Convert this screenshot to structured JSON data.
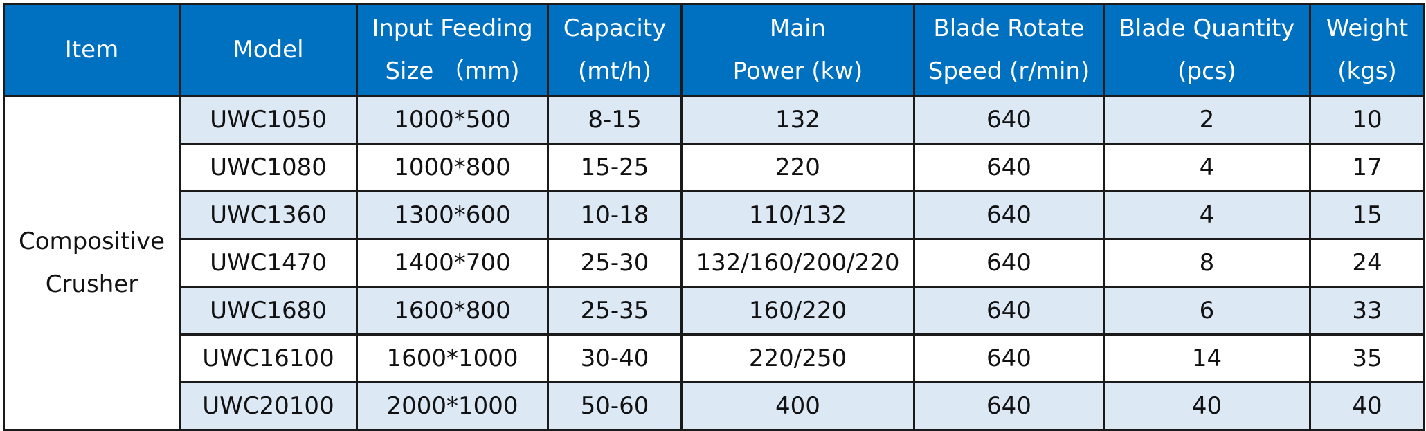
{
  "headers": {
    "item": "Item",
    "model": "Model",
    "input_line1": "Input Feeding",
    "input_line2": "Size （mm)",
    "capacity_line1": "Capacity",
    "capacity_line2": "(mt/h)",
    "power_line1": "Main",
    "power_line2": "Power (kw)",
    "speed_line1": "Blade Rotate",
    "speed_line2": "Speed (r/min)",
    "quantity_line1": "Blade Quantity",
    "quantity_line2": "(pcs)",
    "weight_line1": "Weight",
    "weight_line2": "(kgs)"
  },
  "item": {
    "line1": "Compositive",
    "line2": "Crusher"
  },
  "rows": [
    {
      "model": "UWC1050",
      "input": "1000*500",
      "capacity": "8-15",
      "power": "132",
      "speed": "640",
      "quantity": "2",
      "weight": "10"
    },
    {
      "model": "UWC1080",
      "input": "1000*800",
      "capacity": "15-25",
      "power": "220",
      "speed": "640",
      "quantity": "4",
      "weight": "17"
    },
    {
      "model": "UWC1360",
      "input": "1300*600",
      "capacity": "10-18",
      "power": "110/132",
      "speed": "640",
      "quantity": "4",
      "weight": "15"
    },
    {
      "model": "UWC1470",
      "input": "1400*700",
      "capacity": "25-30",
      "power": "132/160/200/220",
      "speed": "640",
      "quantity": "8",
      "weight": "24"
    },
    {
      "model": "UWC1680",
      "input": "1600*800",
      "capacity": "25-35",
      "power": "160/220",
      "speed": "640",
      "quantity": "6",
      "weight": "33"
    },
    {
      "model": "UWC16100",
      "input": "1600*1000",
      "capacity": "30-40",
      "power": "220/250",
      "speed": "640",
      "quantity": "14",
      "weight": "35"
    },
    {
      "model": "UWC20100",
      "input": "2000*1000",
      "capacity": "50-60",
      "power": "400",
      "speed": "640",
      "quantity": "40",
      "weight": "40"
    }
  ],
  "colors": {
    "header_bg": "#0070c0",
    "alt_row_bg": "#dde8f5",
    "border": "#1a1a1a"
  }
}
